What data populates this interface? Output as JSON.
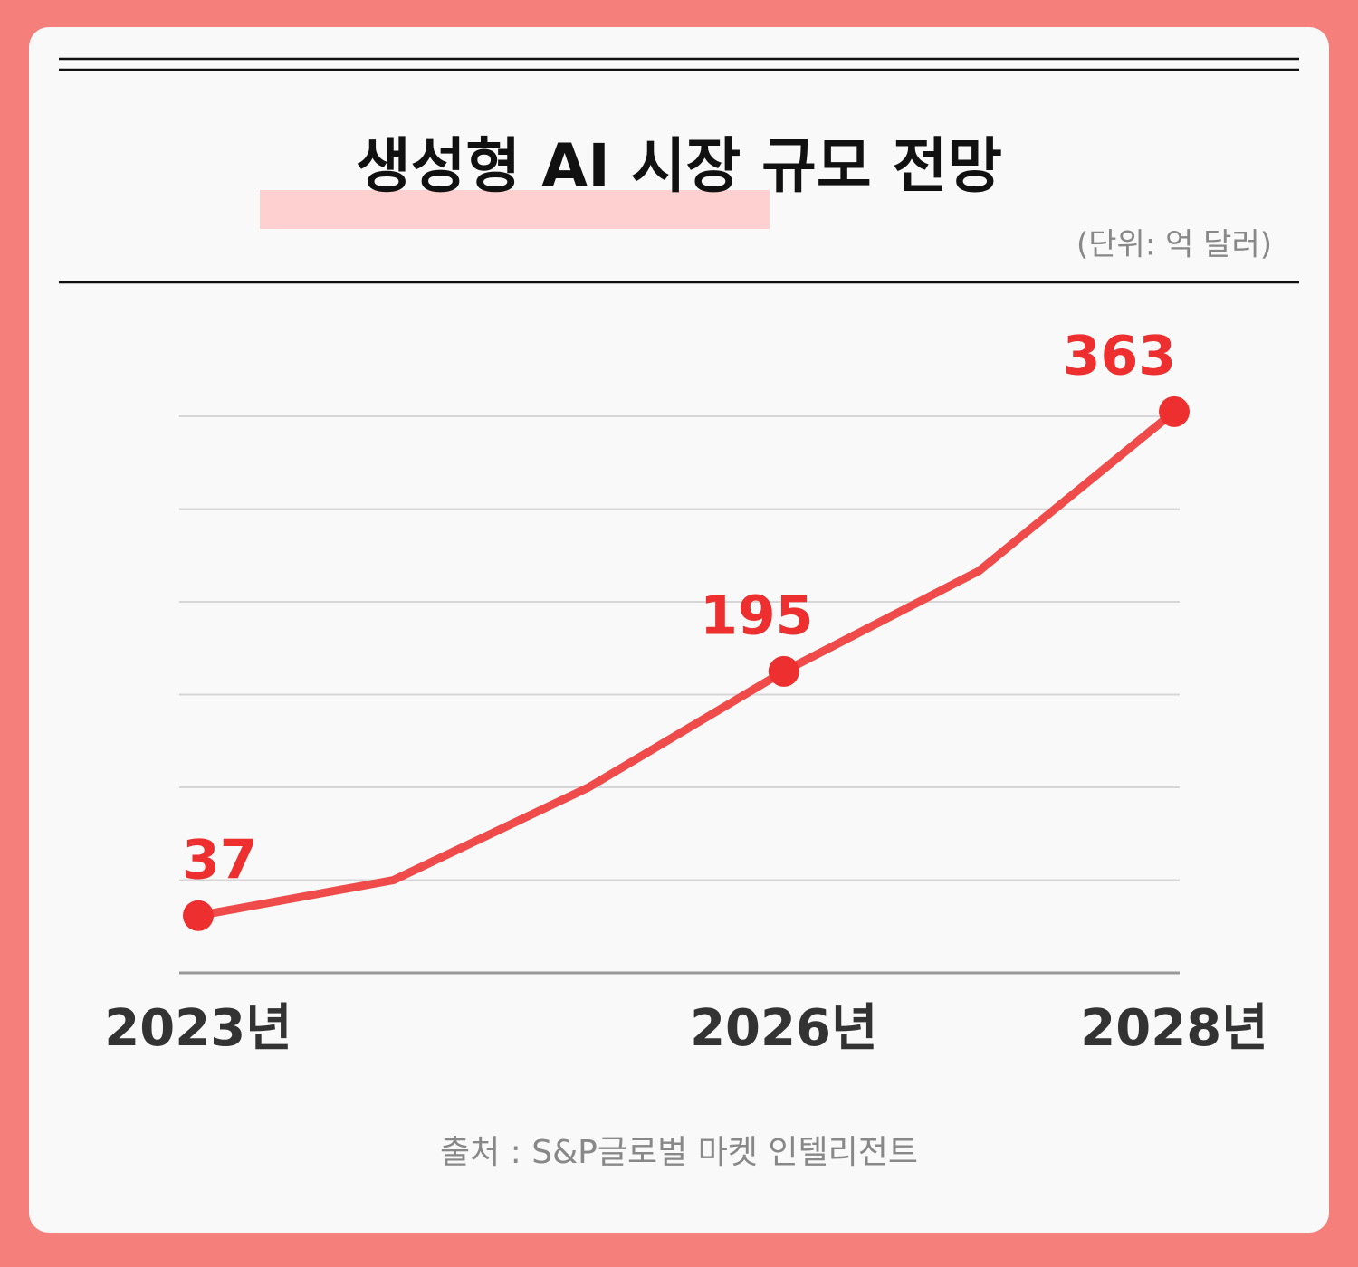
{
  "chart_data": {
    "type": "line",
    "title": "생성형 AI 시장 규모 전망",
    "subtitle": "(단위: 억 달러)",
    "categories": [
      "2023년",
      null,
      null,
      "2026년",
      null,
      "2028년"
    ],
    "series": [
      {
        "name": "시장 규모",
        "color": "#ef4b4b",
        "values": [
          37,
          60,
          120,
          195,
          260,
          363
        ],
        "markers": [
          true,
          false,
          false,
          true,
          false,
          true
        ]
      }
    ],
    "ylim": [
      0,
      360
    ],
    "yticks": [
      0,
      60,
      120,
      180,
      240,
      300,
      360
    ],
    "grid": true,
    "source": "출처 : S&P글로벌 마켓 인텔리전트"
  }
}
